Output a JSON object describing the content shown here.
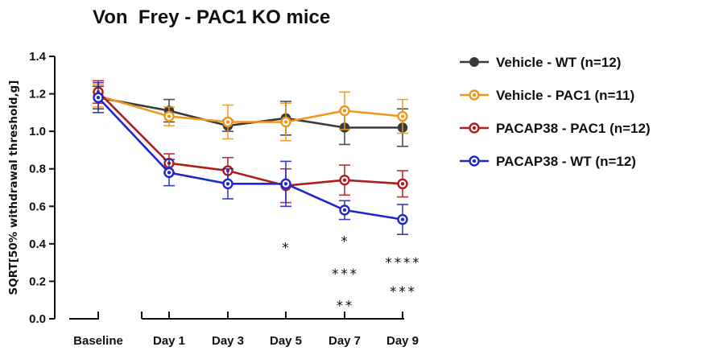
{
  "chart_data": {
    "type": "line",
    "title": "Von  Frey - PAC1 KO mice",
    "xlabel": "",
    "ylabel": "SQRT[50% withdrawal threshold,g]",
    "categories": [
      "Baseline",
      "Day 1",
      "Day 3",
      "Day 5",
      "Day 7",
      "Day 9"
    ],
    "ylim": [
      0,
      1.4
    ],
    "yticks": [
      "0.0",
      "0.2",
      "0.4",
      "0.6",
      "0.8",
      "1.0",
      "1.2",
      "1.4"
    ],
    "grid": false,
    "legend_position": "right",
    "series": [
      {
        "name": "Vehicle - WT (n=12)",
        "color": "#3a3a3a",
        "marker": "filled-circle",
        "values": [
          1.18,
          1.11,
          1.03,
          1.07,
          1.02,
          1.02
        ],
        "errors": [
          0.06,
          0.06,
          0.03,
          0.09,
          0.09,
          0.1
        ]
      },
      {
        "name": "Vehicle - PAC1 (n=11)",
        "color": "#f0961e",
        "marker": "open-circle",
        "values": [
          1.19,
          1.08,
          1.05,
          1.05,
          1.11,
          1.08
        ],
        "errors": [
          0.06,
          0.05,
          0.09,
          0.1,
          0.1,
          0.09
        ]
      },
      {
        "name": "PACAP38 - PAC1 (n=12)",
        "color": "#b01c1c",
        "marker": "open-circle",
        "values": [
          1.21,
          0.83,
          0.79,
          0.71,
          0.74,
          0.72
        ],
        "errors": [
          0.06,
          0.05,
          0.07,
          0.09,
          0.08,
          0.07
        ]
      },
      {
        "name": "PACAP38 - WT (n=12)",
        "color": "#1f28c8",
        "marker": "open-circle",
        "values": [
          1.18,
          0.78,
          0.72,
          0.72,
          0.58,
          0.53
        ],
        "errors": [
          0.08,
          0.07,
          0.08,
          0.12,
          0.05,
          0.08
        ]
      }
    ],
    "annotations": [
      {
        "category": "Day 5",
        "y": 0.38,
        "text": "*"
      },
      {
        "category": "Day 7",
        "y": 0.415,
        "text": "*"
      },
      {
        "category": "Day 7",
        "y": 0.24,
        "text": "***"
      },
      {
        "category": "Day 7",
        "y": 0.07,
        "text": "**"
      },
      {
        "category": "Day 9",
        "y": 0.3,
        "text": "****"
      },
      {
        "category": "Day 9",
        "y": 0.145,
        "text": "***"
      }
    ]
  }
}
